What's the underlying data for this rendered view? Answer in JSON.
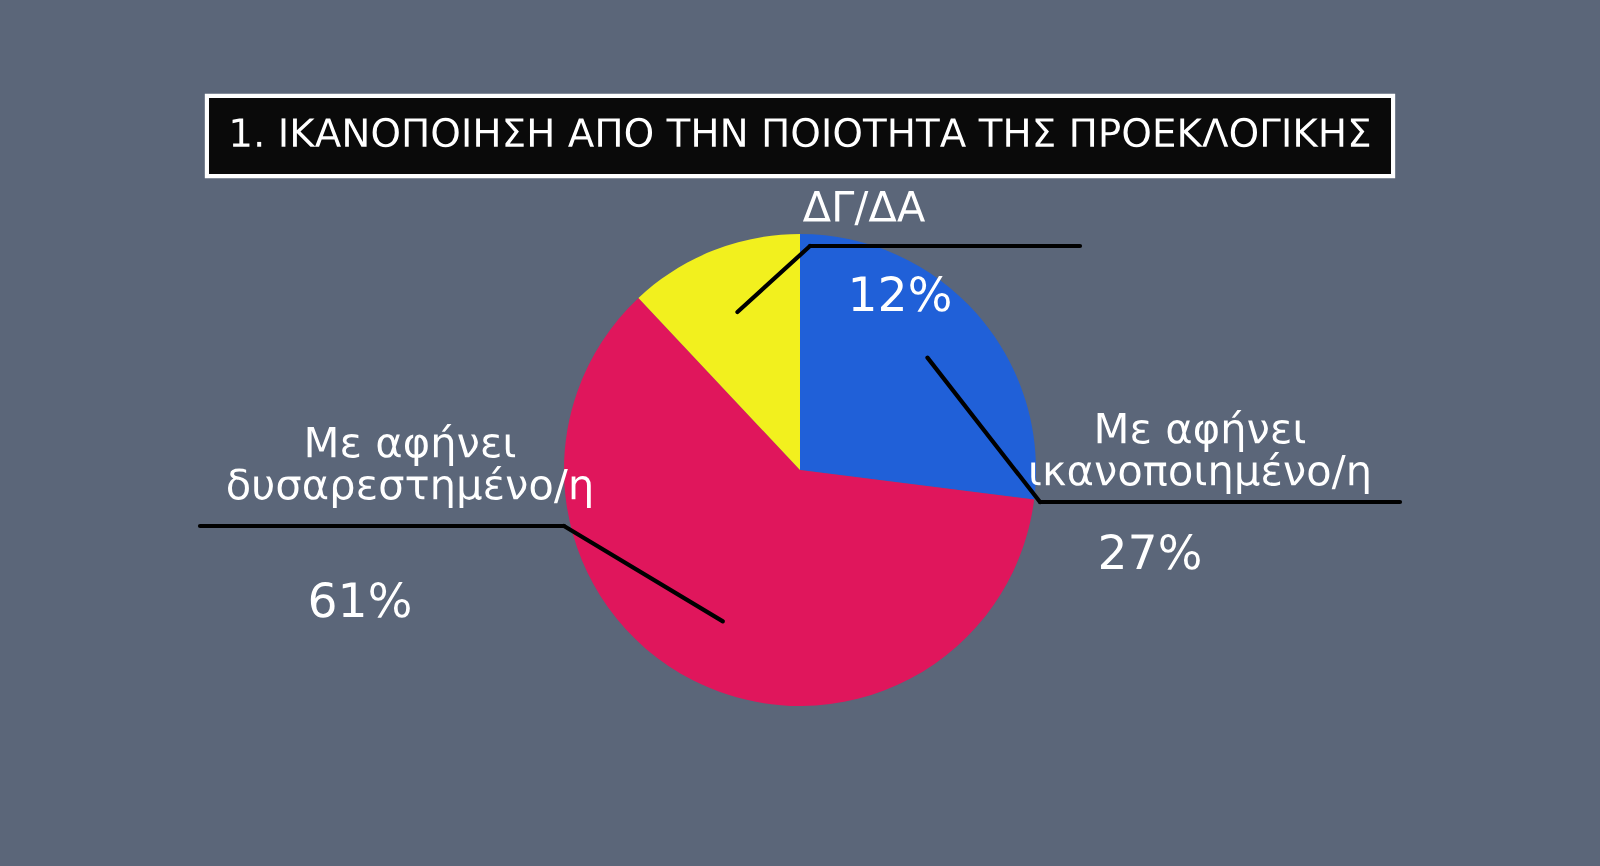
{
  "chart_data": {
    "type": "pie",
    "title": "1. ΙΚΑΝΟΠΟΙΗΣΗ ΑΠΟ ΤΗΝ ΠΟΙΟΤΗΤΑ ΤΗΣ ΠΡΟΕΚΛΟΓΙΚΗΣ",
    "categories": [
      "Με αφήνει ικανοποιημένο/η",
      "Με αφήνει δυσαρεστημένο/η",
      "ΔΓ/ΔΑ"
    ],
    "values": [
      27,
      61,
      12
    ],
    "colors": [
      "#2060d8",
      "#e0165c",
      "#f2f01e"
    ],
    "value_labels": [
      "27%",
      "61%",
      "12%"
    ],
    "legend": false
  }
}
